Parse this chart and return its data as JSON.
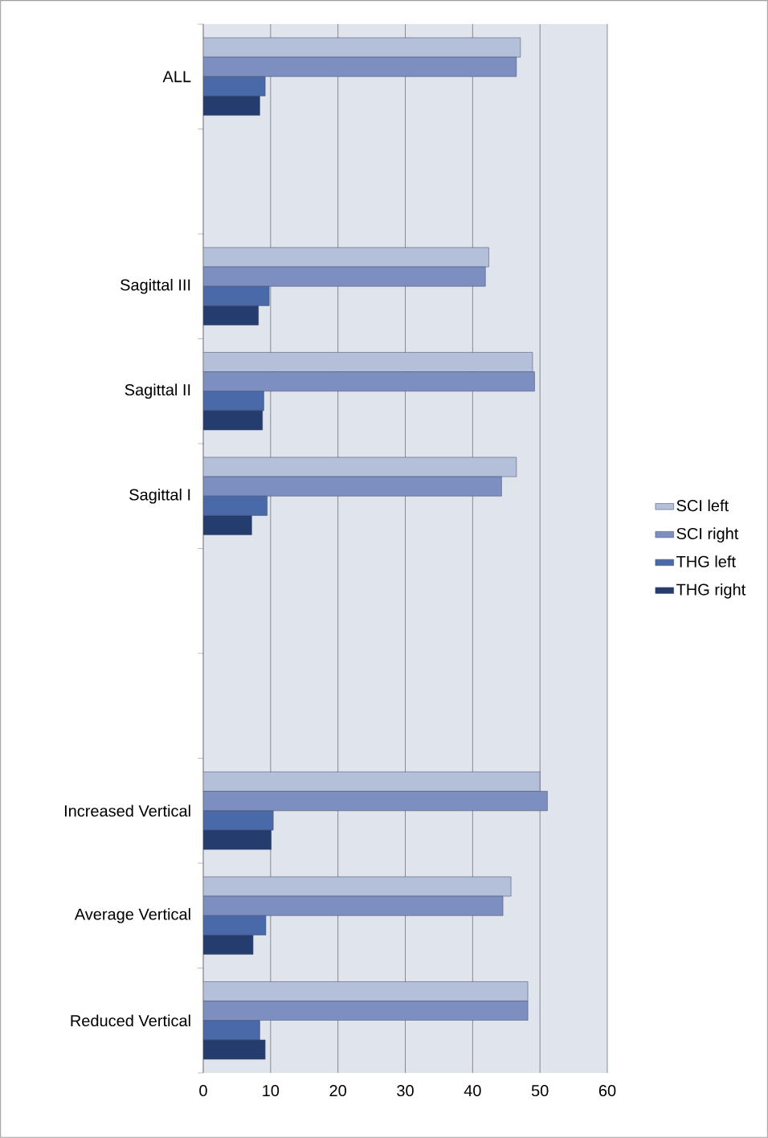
{
  "chart_data": {
    "type": "bar",
    "orientation": "horizontal",
    "categories": [
      "ALL",
      null,
      "Sagittal III",
      "Sagittal II",
      "Sagittal I",
      null,
      null,
      "Increased Vertical",
      "Average Vertical",
      "Reduced Vertical"
    ],
    "series": [
      {
        "name": "SCI left",
        "color": "#b4bfd9",
        "values": [
          47.1,
          null,
          42.4,
          48.9,
          46.5,
          null,
          null,
          50.0,
          45.7,
          48.2
        ]
      },
      {
        "name": "SCI right",
        "color": "#7d8fc0",
        "values": [
          46.5,
          null,
          41.9,
          49.2,
          44.3,
          null,
          null,
          51.1,
          44.5,
          48.2
        ]
      },
      {
        "name": "THG left",
        "color": "#4a69a8",
        "values": [
          9.2,
          null,
          9.8,
          9.0,
          9.5,
          null,
          null,
          10.4,
          9.3,
          8.4
        ]
      },
      {
        "name": "THG right",
        "color": "#243c6e",
        "values": [
          8.4,
          null,
          8.2,
          8.8,
          7.2,
          null,
          null,
          10.1,
          7.4,
          9.2
        ]
      }
    ],
    "xlim": [
      0,
      60
    ],
    "xticks": [
      0,
      10,
      20,
      30,
      40,
      50,
      60
    ],
    "grid": "x",
    "legend": "right"
  }
}
